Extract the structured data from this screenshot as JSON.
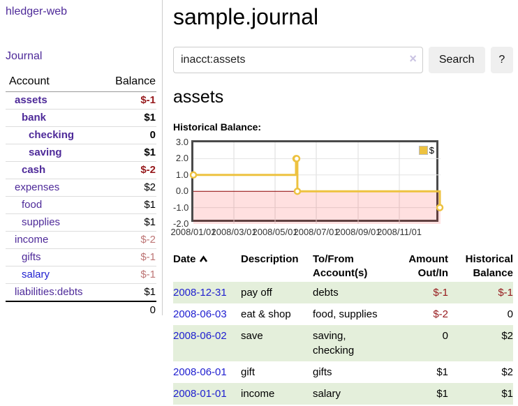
{
  "app": {
    "brand": "hledger-web",
    "nav_journal": "Journal"
  },
  "colors": {
    "link_purple": "#4e2a99",
    "link_blue": "#2020d0",
    "negative": "#96191c",
    "negative_muted": "#bd7575",
    "row_green": "#e4efdb",
    "chart_line": "#EDC240",
    "chart_negative_fill": "rgba(255,0,0,0.12)",
    "zero_line": "#8b0000"
  },
  "sidebar": {
    "headers": {
      "account": "Account",
      "balance": "Balance"
    },
    "accounts": [
      {
        "name": "assets",
        "level": 1,
        "in_query": true,
        "balance": "$-1",
        "balance_style": "negative"
      },
      {
        "name": "bank",
        "level": 2,
        "in_query": true,
        "balance": "$1",
        "balance_style": "normal"
      },
      {
        "name": "checking",
        "level": 3,
        "in_query": true,
        "balance": "0",
        "balance_style": "normal"
      },
      {
        "name": "saving",
        "level": 3,
        "in_query": true,
        "balance": "$1",
        "balance_style": "normal"
      },
      {
        "name": "cash",
        "level": 2,
        "in_query": true,
        "balance": "$-2",
        "balance_style": "negative"
      },
      {
        "name": "expenses",
        "level": 1,
        "in_query": false,
        "balance": "$2",
        "balance_style": "normal"
      },
      {
        "name": "food",
        "level": 2,
        "in_query": false,
        "balance": "$1",
        "balance_style": "normal"
      },
      {
        "name": "supplies",
        "level": 2,
        "in_query": false,
        "balance": "$1",
        "balance_style": "normal"
      },
      {
        "name": "income",
        "level": 1,
        "in_query": false,
        "balance": "$-2",
        "balance_style": "negative-muted"
      },
      {
        "name": "gifts",
        "level": 2,
        "in_query": false,
        "balance": "$-1",
        "balance_style": "negative-muted"
      },
      {
        "name": "salary",
        "level": 2,
        "in_query": false,
        "link_blue": true,
        "balance": "$-1",
        "balance_style": "negative-muted"
      },
      {
        "name": "liabilities:debts",
        "level": 1,
        "in_query": false,
        "balance": "$1",
        "balance_style": "normal"
      }
    ],
    "total": "0"
  },
  "header": {
    "title": "sample.journal"
  },
  "search": {
    "query": "inacct:assets",
    "clear_icon": "×",
    "button_label": "Search",
    "help_label": "?"
  },
  "main": {
    "account_heading": "assets",
    "chart_caption": "Historical Balance:"
  },
  "chart_data": {
    "type": "line",
    "subtype": "step",
    "title": "Historical Balance",
    "legend": {
      "position": "top-right"
    },
    "x_domain_days": [
      0,
      366
    ],
    "ylim": [
      -2,
      3
    ],
    "grid": true,
    "negative_region_color": "rgba(255,0,0,0.12)",
    "zero_line_color": "#8b0000",
    "series": [
      {
        "name": "$",
        "color": "#EDC240",
        "x_dates": [
          "2008-01-01",
          "2008-06-01",
          "2008-06-02",
          "2008-06-03",
          "2008-12-31"
        ],
        "x_days": [
          0,
          152,
          153,
          154,
          365
        ],
        "values": [
          1,
          2,
          2,
          0,
          -1
        ]
      }
    ],
    "x_ticks": [
      {
        "day": 0,
        "label": "2008/01/01"
      },
      {
        "day": 60,
        "label": "2008/03/01"
      },
      {
        "day": 121,
        "label": "2008/05/01"
      },
      {
        "day": 182,
        "label": "2008/07/01"
      },
      {
        "day": 244,
        "label": "2008/09/01"
      },
      {
        "day": 305,
        "label": "2008/11/01"
      }
    ],
    "y_ticks": [
      {
        "v": 3,
        "label": "3.0"
      },
      {
        "v": 2,
        "label": "2.0"
      },
      {
        "v": 1,
        "label": "1.0"
      },
      {
        "v": 0,
        "label": "0.0"
      },
      {
        "v": -1,
        "label": "-1.0"
      },
      {
        "v": -2,
        "label": "-2.0"
      }
    ]
  },
  "register": {
    "headers": {
      "date": "Date",
      "description": "Description",
      "tofrom_line1": "To/From",
      "tofrom_line2": "Account(s)",
      "amount_line1": "Amount",
      "amount_line2": "Out/In",
      "balance_line1": "Historical",
      "balance_line2": "Balance"
    },
    "rows": [
      {
        "date": "2008-12-31",
        "description": "pay off",
        "accounts": "debts",
        "amount": "$-1",
        "amount_negative": true,
        "balance": "$-1",
        "balance_negative": true
      },
      {
        "date": "2008-06-03",
        "description": "eat & shop",
        "accounts": "food, supplies",
        "amount": "$-2",
        "amount_negative": true,
        "balance": "0",
        "balance_negative": false
      },
      {
        "date": "2008-06-02",
        "description": "save",
        "accounts": "saving, checking",
        "amount": "0",
        "amount_negative": false,
        "balance": "$2",
        "balance_negative": false
      },
      {
        "date": "2008-06-01",
        "description": "gift",
        "accounts": "gifts",
        "amount": "$1",
        "amount_negative": false,
        "balance": "$2",
        "balance_negative": false
      },
      {
        "date": "2008-01-01",
        "description": "income",
        "accounts": "salary",
        "amount": "$1",
        "amount_negative": false,
        "balance": "$1",
        "balance_negative": false
      }
    ]
  }
}
